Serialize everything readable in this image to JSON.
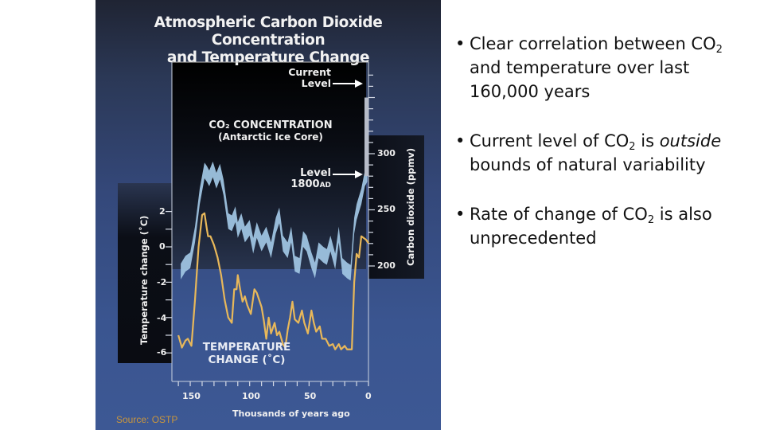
{
  "slide": {
    "source_label": "Source: OSTP",
    "bullets": [
      {
        "parts": [
          "Clear correlation between CO",
          "2",
          " and temperature over last 160,000 years"
        ]
      },
      {
        "parts": [
          "Current level of CO",
          "2",
          " is ",
          "outside",
          " bounds of natural variability"
        ]
      },
      {
        "parts": [
          "Rate of change of CO",
          "2",
          " is also unprecedented"
        ]
      }
    ],
    "bullet_glyph": "•"
  },
  "figure": {
    "title_line1": "Atmospheric Carbon Dioxide Concentration",
    "title_line2": "and Temperature Change",
    "co2_heading_line1": "CO₂ CONCENTRATION",
    "co2_heading_line2": "(Antarctic Ice Core)",
    "temp_heading_line1": "TEMPERATURE",
    "temp_heading_line2": "CHANGE (˚C)",
    "annotation_current_line1": "Current",
    "annotation_current_line2": "Level",
    "annotation_1800_line1": "Level",
    "annotation_1800_line2": "1800",
    "annotation_1800_suffix": "AD",
    "arrow_glyph": "→",
    "co2_axis_label": "Carbon dioxide (ppmv)",
    "temp_axis_label": "Temperature change (˚C)",
    "x_axis_label": "Thousands of years ago",
    "co2_ticks": [
      "300",
      "250",
      "200"
    ],
    "temp_ticks": [
      "2",
      "0",
      "-2",
      "-4",
      "-6"
    ],
    "x_ticks": [
      "150",
      "100",
      "50",
      "0"
    ],
    "colors": {
      "co2_band": "#9ec3e0",
      "temperature_line": "#e8b85a",
      "panel_bg": "#34487a",
      "source_text": "#c8963e"
    }
  },
  "chart_data": {
    "type": "line",
    "title": "Atmospheric Carbon Dioxide Concentration and Temperature Change",
    "xlabel": "Thousands of years ago",
    "xlim": [
      160,
      0
    ],
    "x_ticks": [
      150,
      100,
      50,
      0
    ],
    "series": [
      {
        "name": "CO2 concentration (Antarctic Ice Core)",
        "axis": "right",
        "unit": "ppmv",
        "ylabel": "Carbon dioxide (ppmv)",
        "ylim": [
          190,
          360
        ],
        "y_ticks": [
          200,
          250,
          300
        ],
        "x": [
          158,
          154,
          150,
          146,
          142,
          138,
          136,
          134,
          131,
          128,
          125,
          122,
          118,
          115,
          112,
          110,
          107,
          104,
          100,
          97,
          94,
          90,
          86,
          82,
          78,
          75,
          72,
          68,
          65,
          62,
          58,
          55,
          52,
          48,
          45,
          42,
          38,
          35,
          32,
          28,
          25,
          22,
          18,
          15,
          12,
          10,
          6,
          3,
          1,
          0
        ],
        "values": [
          195,
          202,
          205,
          228,
          262,
          285,
          282,
          278,
          286,
          276,
          284,
          270,
          240,
          238,
          246,
          232,
          240,
          228,
          234,
          218,
          232,
          220,
          228,
          214,
          236,
          245,
          220,
          214,
          228,
          202,
          200,
          224,
          220,
          205,
          196,
          214,
          210,
          208,
          220,
          204,
          228,
          200,
          196,
          194,
          236,
          248,
          262,
          278,
          282,
          350
        ],
        "band_width_ppm": 14,
        "annotations": [
          {
            "label": "Current Level",
            "value": 350,
            "x": 0
          },
          {
            "label": "Level 1800AD",
            "value": 280,
            "x": 0
          }
        ]
      },
      {
        "name": "Temperature change",
        "axis": "left",
        "unit": "°C",
        "ylabel": "Temperature change (°C)",
        "ylim": [
          -7,
          3
        ],
        "y_ticks": [
          2,
          0,
          -2,
          -4,
          -6
        ],
        "x": [
          160,
          157,
          154,
          152,
          149,
          146,
          143,
          140,
          138,
          136,
          135,
          133,
          130,
          127,
          124,
          121,
          118,
          115,
          113,
          111,
          110,
          108,
          106,
          104,
          102,
          99,
          96,
          94,
          92,
          90,
          88,
          86,
          84,
          82,
          79,
          77,
          75,
          72,
          70,
          68,
          66,
          64,
          62,
          59,
          56,
          54,
          51,
          48,
          46,
          44,
          41,
          39,
          36,
          33,
          30,
          28,
          25,
          23,
          20,
          18,
          16,
          14,
          12,
          10,
          8,
          6,
          4,
          2,
          0
        ],
        "values": [
          -5.0,
          -5.7,
          -5.3,
          -5.2,
          -5.6,
          -3.0,
          0.0,
          1.8,
          1.9,
          1.0,
          0.6,
          0.6,
          0.1,
          -0.6,
          -1.6,
          -3.0,
          -4.0,
          -4.3,
          -2.4,
          -2.4,
          -1.6,
          -2.4,
          -3.1,
          -2.8,
          -3.3,
          -3.8,
          -2.4,
          -2.6,
          -3.0,
          -3.4,
          -4.2,
          -5.2,
          -4.0,
          -4.9,
          -4.3,
          -5.0,
          -4.8,
          -5.5,
          -5.7,
          -4.7,
          -4.0,
          -3.1,
          -4.1,
          -4.3,
          -3.6,
          -4.3,
          -4.9,
          -3.6,
          -4.3,
          -4.8,
          -4.5,
          -5.2,
          -5.2,
          -5.6,
          -5.5,
          -5.8,
          -5.5,
          -5.8,
          -5.6,
          -5.8,
          -5.8,
          -5.8,
          -2.0,
          -0.4,
          -0.6,
          0.6,
          0.5,
          0.4,
          0.2
        ]
      }
    ],
    "legend": "inline labels (CO2 CONCENTRATION top, TEMPERATURE CHANGE bottom)",
    "grid": false
  }
}
